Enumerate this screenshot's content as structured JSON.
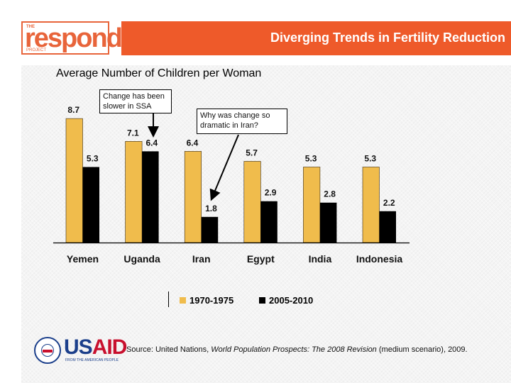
{
  "header": {
    "logo": {
      "the": "THE",
      "name": "respond",
      "project": "PROJECT"
    },
    "title": "Diverging Trends in Fertility Reduction",
    "accent_color": "#ee5a2a"
  },
  "callouts": [
    {
      "text_line1": "Change has been",
      "text_line2": "slower in SSA"
    },
    {
      "text_line1": "Why was change so",
      "text_line2": "dramatic in Iran?"
    }
  ],
  "footer": {
    "usaid": {
      "us": "US",
      "aid": "AID",
      "tagline": "FROM THE AMERICAN PEOPLE"
    },
    "source_prefix": "Source: United Nations, ",
    "source_title": "World Population Prospects: The 2008 Revision",
    "source_suffix": " (medium scenario), 2009."
  },
  "chart_data": {
    "type": "bar",
    "title": "Average Number of Children per Woman",
    "xlabel": "",
    "ylabel": "",
    "ylim": [
      0,
      9
    ],
    "grid": false,
    "legend_position": "bottom",
    "categories": [
      "Yemen",
      "Uganda",
      "Iran",
      "Egypt",
      "India",
      "Indonesia"
    ],
    "series": [
      {
        "name": "1970-1975",
        "color": "#f0bc4c",
        "values": [
          8.7,
          7.1,
          6.4,
          5.7,
          5.3,
          5.3
        ],
        "labels": [
          "8.7",
          "7.1",
          "6.4",
          "5.7",
          "5.3",
          "5.3"
        ]
      },
      {
        "name": "2005-2010",
        "color": "#000000",
        "values": [
          5.3,
          6.4,
          1.8,
          2.9,
          2.8,
          2.2
        ],
        "labels": [
          "5.3",
          "6.4",
          "1.8",
          "2.9",
          "2.8",
          "2.2"
        ]
      }
    ]
  }
}
